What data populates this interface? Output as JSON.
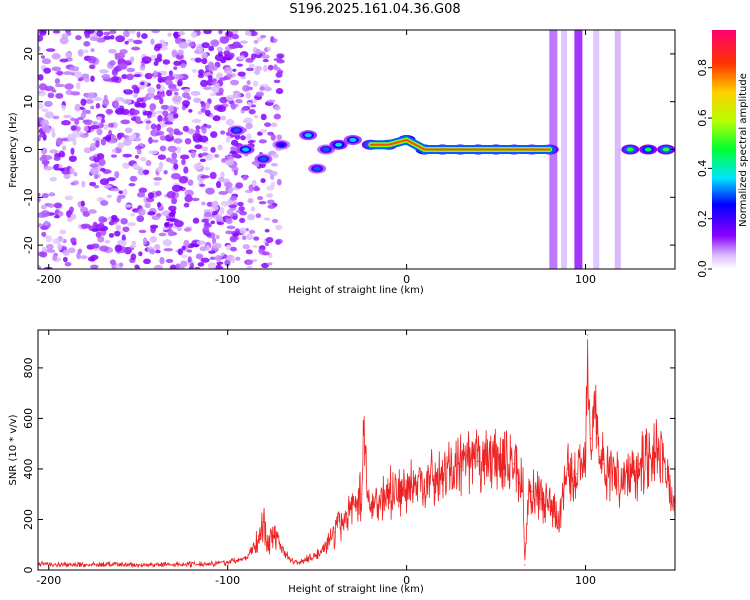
{
  "page": {
    "title": "S196.2025.161.04.36.G08"
  },
  "colorbar": {
    "label": "Normalized spectral amplitude",
    "ticks": [
      "0.0",
      "0.2",
      "0.4",
      "0.6",
      "0.8"
    ],
    "tick_values": [
      0.0,
      0.2,
      0.4,
      0.6,
      0.8
    ],
    "range": [
      0,
      0.95
    ],
    "colormap": [
      "#ffffff",
      "#cc99ff",
      "#7a00ff",
      "#0000ff",
      "#00ffff",
      "#00ff66",
      "#ffff00",
      "#ff8800",
      "#ff0000",
      "#ff0066"
    ]
  },
  "colors": {
    "snr_line": "#ee2222",
    "axes": "#000000"
  },
  "chart_data": [
    {
      "type": "heatmap",
      "title": "S196.2025.161.04.36.G08",
      "xlabel": "Height of straight line (km)",
      "ylabel": "Frequency (Hz)",
      "xlim": [
        -206,
        150
      ],
      "ylim": [
        -25,
        25
      ],
      "xticks": [
        -200,
        -100,
        0,
        100
      ],
      "yticks": [
        -20,
        -10,
        0,
        10,
        20
      ],
      "description_of_features": "Scattered low-amplitude speckle for x < -100; dense ridge near 0 Hz from about -100 to 150 km with peak amplitude near 0 Hz between -20 and 80 km; vertical streaks near 80-125 km",
      "ridge": [
        {
          "x": -95,
          "f": 4,
          "a": 0.3
        },
        {
          "x": -90,
          "f": 0,
          "a": 0.35
        },
        {
          "x": -80,
          "f": -2,
          "a": 0.3
        },
        {
          "x": -70,
          "f": 1,
          "a": 0.25
        },
        {
          "x": -55,
          "f": 3,
          "a": 0.35
        },
        {
          "x": -50,
          "f": -4,
          "a": 0.3
        },
        {
          "x": -45,
          "f": 0,
          "a": 0.3
        },
        {
          "x": -38,
          "f": 1,
          "a": 0.4
        },
        {
          "x": -30,
          "f": 2,
          "a": 0.35
        },
        {
          "x": -20,
          "f": 1,
          "a": 0.5
        },
        {
          "x": -10,
          "f": 1,
          "a": 0.7
        },
        {
          "x": 0,
          "f": 2,
          "a": 0.75
        },
        {
          "x": 10,
          "f": 0,
          "a": 0.8
        },
        {
          "x": 20,
          "f": 0,
          "a": 0.85
        },
        {
          "x": 30,
          "f": 0,
          "a": 0.85
        },
        {
          "x": 40,
          "f": 0,
          "a": 0.85
        },
        {
          "x": 50,
          "f": 0,
          "a": 0.8
        },
        {
          "x": 60,
          "f": 0,
          "a": 0.6
        },
        {
          "x": 70,
          "f": 0,
          "a": 0.5
        },
        {
          "x": 80,
          "f": 0,
          "a": 0.5
        },
        {
          "x": 125,
          "f": 0,
          "a": 0.5
        },
        {
          "x": 135,
          "f": 0,
          "a": 0.45
        },
        {
          "x": 145,
          "f": 0,
          "a": 0.5
        }
      ]
    },
    {
      "type": "line",
      "xlabel": "Height of straight line (km)",
      "ylabel": "SNR (10 * v/v)",
      "xlim": [
        -206,
        150
      ],
      "ylim": [
        0,
        950
      ],
      "xticks": [
        -200,
        -100,
        0,
        100
      ],
      "yticks": [
        0,
        200,
        400,
        600,
        800
      ],
      "series": [
        {
          "color": "#ee2222",
          "x": [
            -206,
            -190,
            -170,
            -150,
            -130,
            -110,
            -100,
            -90,
            -82,
            -80,
            -78,
            -72,
            -70,
            -65,
            -60,
            -50,
            -40,
            -30,
            -25,
            -24,
            -22,
            -20,
            -10,
            0,
            10,
            20,
            30,
            40,
            50,
            60,
            65,
            66,
            68,
            70,
            75,
            80,
            85,
            88,
            90,
            92,
            95,
            98,
            100,
            101,
            103,
            105,
            108,
            110,
            115,
            120,
            125,
            130,
            135,
            140,
            145,
            150
          ],
          "y": [
            25,
            20,
            22,
            20,
            22,
            25,
            30,
            45,
            120,
            190,
            110,
            150,
            90,
            40,
            30,
            60,
            150,
            260,
            300,
            550,
            300,
            260,
            300,
            320,
            350,
            380,
            410,
            430,
            440,
            420,
            350,
            20,
            300,
            310,
            280,
            250,
            210,
            330,
            400,
            350,
            380,
            420,
            470,
            930,
            520,
            650,
            450,
            420,
            380,
            360,
            380,
            420,
            460,
            480,
            400,
            220
          ]
        }
      ]
    }
  ]
}
